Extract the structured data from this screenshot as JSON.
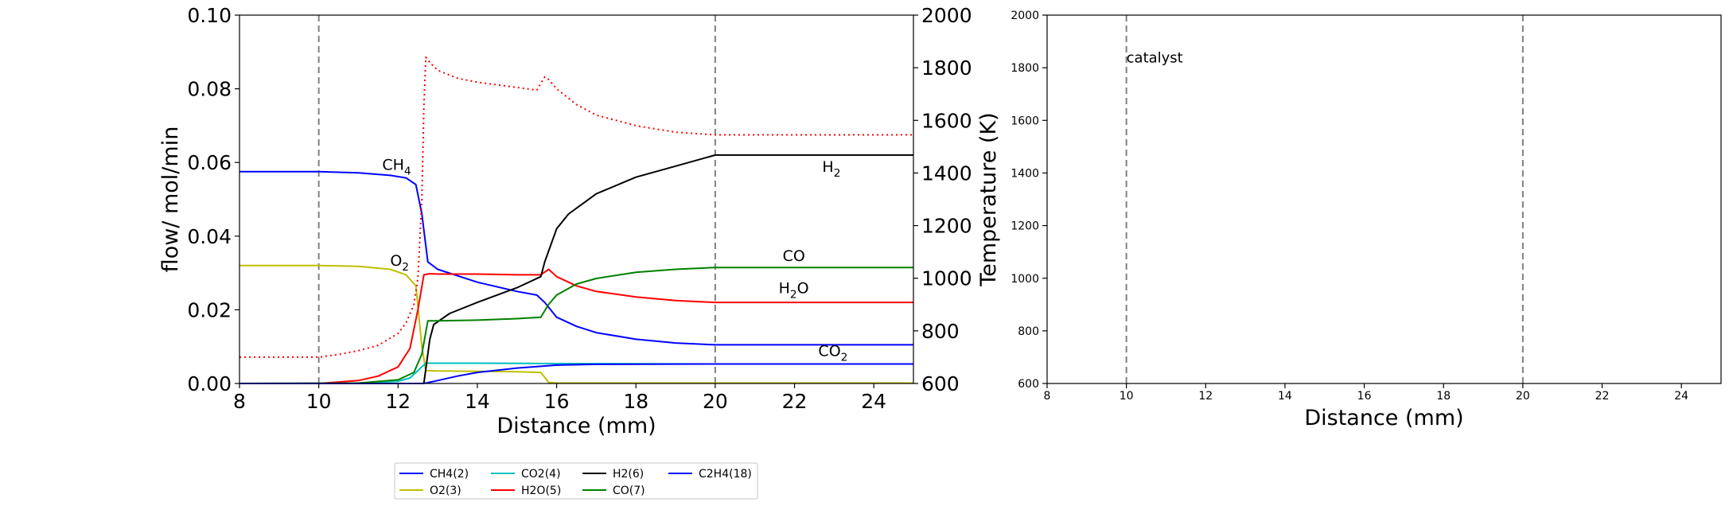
{
  "chart_data": [
    {
      "type": "line",
      "xlabel": "Distance (mm)",
      "ylabel": "flow/ mol/min",
      "y2label": "Temperature (K)",
      "xlim": [
        8,
        25
      ],
      "ylim": [
        0,
        0.1
      ],
      "y2lim": [
        600,
        2000
      ],
      "xticks": [
        "8",
        "10",
        "12",
        "14",
        "16",
        "18",
        "20",
        "22",
        "24"
      ],
      "yticks": [
        "0.00",
        "0.02",
        "0.04",
        "0.06",
        "0.08",
        "0.10"
      ],
      "y2ticks": [
        "600",
        "800",
        "1000",
        "1200",
        "1400",
        "1600",
        "1800",
        "2000"
      ],
      "vlines": [
        10,
        20
      ],
      "series": [
        {
          "name": "CH4(2)",
          "color": "#0000ff",
          "style": "solid",
          "x": [
            8,
            10,
            11,
            11.8,
            12.2,
            12.45,
            12.6,
            12.75,
            13,
            14,
            15,
            15.5,
            15.7,
            16,
            16.5,
            17,
            18,
            19,
            20,
            25
          ],
          "y": [
            0.0575,
            0.0575,
            0.0572,
            0.0565,
            0.0558,
            0.054,
            0.046,
            0.033,
            0.031,
            0.0275,
            0.025,
            0.024,
            0.022,
            0.018,
            0.0155,
            0.0138,
            0.012,
            0.011,
            0.0105,
            0.0105
          ]
        },
        {
          "name": "O2(3)",
          "color": "#bfbf00",
          "style": "solid",
          "x": [
            8,
            10,
            11,
            11.8,
            12.2,
            12.45,
            12.6,
            12.7,
            13,
            14,
            15,
            15.6,
            15.8,
            16,
            25
          ],
          "y": [
            0.032,
            0.032,
            0.0318,
            0.031,
            0.0295,
            0.0265,
            0.01,
            0.0035,
            0.0034,
            0.0033,
            0.0032,
            0.003,
            0.0003,
            0.0001,
            0.0001
          ]
        },
        {
          "name": "CO2(4)",
          "color": "#00bfbf",
          "style": "solid",
          "x": [
            8,
            11,
            12,
            12.3,
            12.55,
            12.7,
            14,
            16,
            20,
            25
          ],
          "y": [
            0,
            0.0001,
            0.0006,
            0.0015,
            0.004,
            0.0055,
            0.0055,
            0.0054,
            0.0053,
            0.0053
          ]
        },
        {
          "name": "H2O(5)",
          "color": "#ff0000",
          "style": "solid",
          "x": [
            8,
            10,
            11,
            11.5,
            12,
            12.3,
            12.5,
            12.65,
            12.8,
            13,
            14,
            15,
            15.6,
            15.8,
            16,
            16.5,
            17,
            18,
            19,
            20,
            25
          ],
          "y": [
            0,
            0,
            0.0008,
            0.002,
            0.0045,
            0.0095,
            0.02,
            0.0295,
            0.0298,
            0.0297,
            0.0297,
            0.0295,
            0.0295,
            0.031,
            0.029,
            0.0265,
            0.025,
            0.0235,
            0.0225,
            0.022,
            0.022
          ]
        },
        {
          "name": "H2(6)",
          "color": "#000000",
          "style": "solid",
          "x": [
            8,
            12.65,
            12.8,
            12.9,
            13.3,
            14,
            15,
            15.6,
            15.7,
            16,
            16.3,
            17,
            18,
            19,
            20,
            25
          ],
          "y": [
            0,
            0,
            0.012,
            0.016,
            0.019,
            0.022,
            0.026,
            0.029,
            0.033,
            0.042,
            0.046,
            0.0515,
            0.056,
            0.059,
            0.062,
            0.062
          ]
        },
        {
          "name": "CO(7)",
          "color": "#008000",
          "style": "solid",
          "x": [
            8,
            11,
            12,
            12.4,
            12.6,
            12.75,
            13,
            14,
            15,
            15.6,
            15.8,
            16,
            16.5,
            17,
            18,
            19,
            20,
            25
          ],
          "y": [
            0,
            0.0001,
            0.001,
            0.003,
            0.008,
            0.017,
            0.017,
            0.0172,
            0.0176,
            0.018,
            0.0215,
            0.024,
            0.027,
            0.0285,
            0.0302,
            0.031,
            0.0315,
            0.0315
          ]
        },
        {
          "name": "C2H4(18)",
          "color": "#0000ff",
          "style": "solid",
          "x": [
            8,
            12.6,
            12.7,
            13,
            13.5,
            14,
            15,
            16,
            17,
            20,
            25
          ],
          "y": [
            0,
            0,
            0.0001,
            0.0008,
            0.002,
            0.003,
            0.0042,
            0.005,
            0.0052,
            0.0053,
            0.0053
          ]
        },
        {
          "name": "",
          "color": "#ff0000",
          "style": "dotted",
          "axis": "y2",
          "x": [
            8,
            10,
            10.5,
            11,
            11.5,
            12,
            12.2,
            12.4,
            12.5,
            12.6,
            12.65,
            12.7,
            12.8,
            13,
            13.5,
            14,
            15,
            15.5,
            15.7,
            15.8,
            16,
            16.5,
            17,
            18,
            19,
            20,
            25
          ],
          "y": [
            700,
            700,
            710,
            725,
            745,
            790,
            830,
            900,
            1000,
            1300,
            1650,
            1840,
            1820,
            1790,
            1760,
            1745,
            1725,
            1715,
            1765,
            1755,
            1720,
            1660,
            1620,
            1580,
            1555,
            1545,
            1545
          ]
        }
      ],
      "annotations": [
        {
          "text": "CH",
          "sub": "4",
          "x": 11.6,
          "y": 0.058,
          "color": "#0000ff"
        },
        {
          "text": "O",
          "sub": "2",
          "x": 11.8,
          "y": 0.032,
          "color": "#bfbf00"
        },
        {
          "text": "H",
          "sub": "2",
          "x": 22.7,
          "y": 0.0575,
          "color": "#000000"
        },
        {
          "text": "CO",
          "sub": "",
          "x": 21.7,
          "y": 0.0333,
          "color": "#008000"
        },
        {
          "text": "H",
          "sub": "2",
          "text2": "O",
          "x": 21.6,
          "y": 0.0245,
          "color": "#ff0000"
        },
        {
          "text": "CO",
          "sub": "2",
          "x": 22.6,
          "y": 0.0075,
          "color": "#00bfbf"
        }
      ]
    },
    {
      "type": "line",
      "xlabel": "Distance (mm)",
      "ylabel": "",
      "xlim": [
        8,
        25
      ],
      "ylim": [
        600,
        2000
      ],
      "xticks": [
        "8",
        "10",
        "12",
        "14",
        "16",
        "18",
        "20",
        "22",
        "24"
      ],
      "yticks": [
        "600",
        "800",
        "1000",
        "1200",
        "1400",
        "1600",
        "1800",
        "2000"
      ],
      "vlines": [
        10,
        20
      ],
      "series": [],
      "annotations": [
        {
          "text": "catalyst",
          "x": 10.0,
          "y": 1820,
          "color": "#000000"
        }
      ]
    }
  ],
  "legend": {
    "placement": "below",
    "entries": [
      {
        "label": "CH4(2)",
        "color": "#0000ff"
      },
      {
        "label": "O2(3)",
        "color": "#bfbf00"
      },
      {
        "label": "CO2(4)",
        "color": "#00bfbf"
      },
      {
        "label": "H2O(5)",
        "color": "#ff0000"
      },
      {
        "label": "H2(6)",
        "color": "#000000"
      },
      {
        "label": "CO(7)",
        "color": "#008000"
      },
      {
        "label": "C2H4(18)",
        "color": "#0000ff"
      }
    ]
  }
}
